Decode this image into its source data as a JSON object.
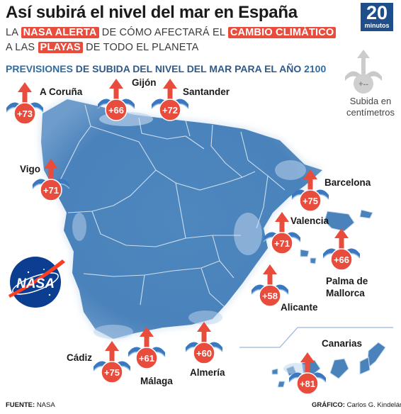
{
  "title": "Así subirá el nivel del mar en España",
  "subtitle": {
    "l1_a": "LA ",
    "l1_b": "NASA ALERTA",
    "l1_c": " DE CÓMO AFECTARÁ EL ",
    "l1_d": "CAMBIO CLIMÁTICO",
    "l2_a": "A LAS ",
    "l2_b": "PLAYAS",
    "l2_c": " DE TODO EL PLANETA"
  },
  "header": {
    "prev_a": "PREVISIONES",
    "prev_b": " DE SUBIDA DEL NIVEL DEL MAR PARA EL AÑO ",
    "prev_c": "2100"
  },
  "logo": {
    "number": "20",
    "word": "minutos"
  },
  "nasa_logo": {
    "text": "NASA"
  },
  "legend": {
    "label": "Subida en centímetros",
    "symbol": "+--"
  },
  "cities": [
    {
      "name": "A Coruña",
      "value": "+73"
    },
    {
      "name": "Gijón",
      "value": "+66"
    },
    {
      "name": "Santander",
      "value": "+72"
    },
    {
      "name": "Vigo",
      "value": "+71"
    },
    {
      "name": "Barcelona",
      "value": "+75"
    },
    {
      "name": "Valencia",
      "value": "+71"
    },
    {
      "name": "Palma de Mallorca",
      "value": "+66"
    },
    {
      "name": "Alicante",
      "value": "+58"
    },
    {
      "name": "Almería",
      "value": "+60"
    },
    {
      "name": "Málaga",
      "value": "+61"
    },
    {
      "name": "Cádiz",
      "value": "+75"
    },
    {
      "name": "Canarias",
      "value": "+81"
    }
  ],
  "footer": {
    "source_label": "FUENTE:",
    "source_value": "NASA",
    "credit_label": "GRÁFICO:",
    "credit_value": "Carlos G. Kindelán"
  },
  "colors": {
    "map_fill": "#4a82bb",
    "map_edge": "#c9dcee",
    "arrow_red": "#e84c3d",
    "wave_blue": "#3a78c0",
    "title": "#1a1a1a",
    "subtitle_highlight": "#e84c3d",
    "header_blue": "#2e6da4",
    "logo_blue": "#1f4f8a"
  }
}
